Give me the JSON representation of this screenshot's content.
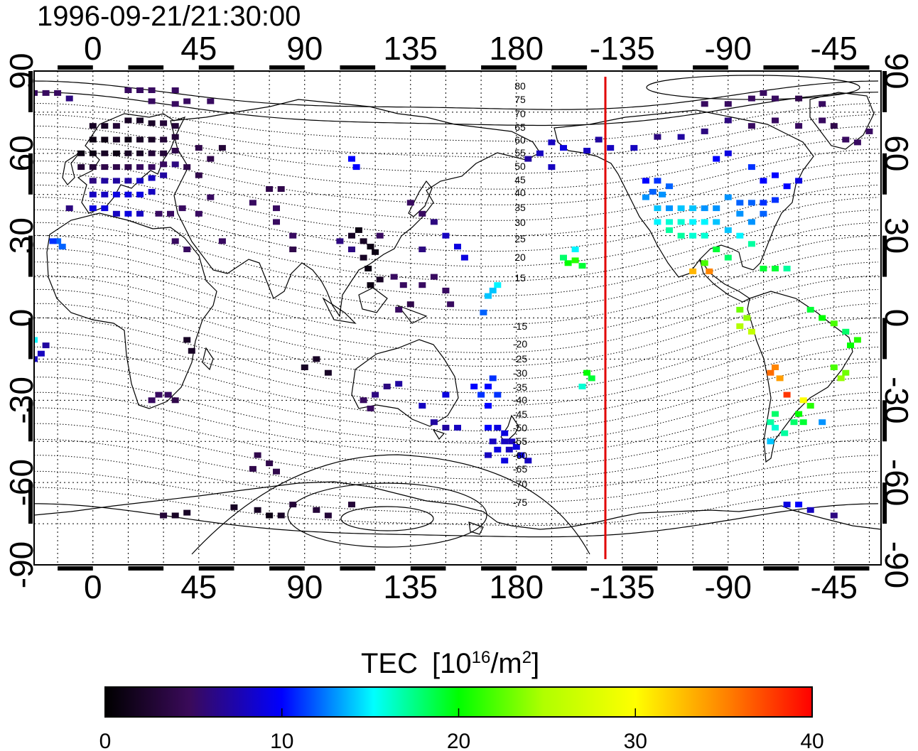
{
  "title": "1996-09-21/21:30:00",
  "lon_ticks": [
    "0",
    "45",
    "90",
    "135",
    "180",
    "-135",
    "-90",
    "-45"
  ],
  "lat_ticks": [
    "90",
    "60",
    "30",
    "0",
    "-30",
    "-60",
    "-90"
  ],
  "contour_labels": [
    "80",
    "75",
    "70",
    "65",
    "60",
    "55",
    "50",
    "45",
    "40",
    "35",
    "30",
    "25",
    "20",
    "15",
    "-15",
    "-20",
    "-25",
    "-30",
    "-35",
    "-40",
    "-45",
    "-50",
    "-55",
    "-60",
    "-65",
    "-70",
    "-75"
  ],
  "colorbar": {
    "title": "TEC",
    "unit_base": "[10",
    "unit_exp": "16",
    "unit_mid": "/m",
    "unit_exp2": "2",
    "unit_close": "]",
    "ticks": [
      "0",
      "10",
      "20",
      "30",
      "40"
    ],
    "range": [
      0,
      40
    ]
  },
  "terminator_color": "#e00000",
  "tec_cells": [
    {
      "lon": -25,
      "lat": 82,
      "v": 5
    },
    {
      "lon": -20,
      "lat": 82,
      "v": 5
    },
    {
      "lon": -15,
      "lat": 82,
      "v": 5
    },
    {
      "lon": -10,
      "lat": 80,
      "v": 6
    },
    {
      "lon": 15,
      "lat": 83,
      "v": 5
    },
    {
      "lon": 20,
      "lat": 83,
      "v": 5
    },
    {
      "lon": 25,
      "lat": 83,
      "v": 5
    },
    {
      "lon": 35,
      "lat": 83,
      "v": 5
    },
    {
      "lon": 25,
      "lat": 79,
      "v": 5
    },
    {
      "lon": 35,
      "lat": 78,
      "v": 5
    },
    {
      "lon": 40,
      "lat": 79,
      "v": 5
    },
    {
      "lon": 50,
      "lat": 79,
      "v": 5
    },
    {
      "lon": 0,
      "lat": 70,
      "v": 2
    },
    {
      "lon": 5,
      "lat": 70,
      "v": 2
    },
    {
      "lon": 10,
      "lat": 70,
      "v": 3
    },
    {
      "lon": 15,
      "lat": 72,
      "v": 2
    },
    {
      "lon": 20,
      "lat": 72,
      "v": 2
    },
    {
      "lon": 25,
      "lat": 71,
      "v": 2
    },
    {
      "lon": 30,
      "lat": 71,
      "v": 3
    },
    {
      "lon": 35,
      "lat": 70,
      "v": 3
    },
    {
      "lon": 0,
      "lat": 65,
      "v": 1
    },
    {
      "lon": 5,
      "lat": 65,
      "v": 1
    },
    {
      "lon": 10,
      "lat": 65,
      "v": 2
    },
    {
      "lon": 15,
      "lat": 65,
      "v": 1
    },
    {
      "lon": 20,
      "lat": 65,
      "v": 2
    },
    {
      "lon": 25,
      "lat": 65,
      "v": 2
    },
    {
      "lon": 30,
      "lat": 65,
      "v": 3
    },
    {
      "lon": 35,
      "lat": 66,
      "v": 3
    },
    {
      "lon": -5,
      "lat": 60,
      "v": 1
    },
    {
      "lon": 0,
      "lat": 60,
      "v": 1
    },
    {
      "lon": 5,
      "lat": 60,
      "v": 2
    },
    {
      "lon": 10,
      "lat": 60,
      "v": 1
    },
    {
      "lon": 15,
      "lat": 60,
      "v": 2
    },
    {
      "lon": 20,
      "lat": 60,
      "v": 2
    },
    {
      "lon": 25,
      "lat": 60,
      "v": 3
    },
    {
      "lon": 30,
      "lat": 60,
      "v": 3
    },
    {
      "lon": 35,
      "lat": 61,
      "v": 4
    },
    {
      "lon": -5,
      "lat": 55,
      "v": 3
    },
    {
      "lon": 0,
      "lat": 55,
      "v": 3
    },
    {
      "lon": 5,
      "lat": 55,
      "v": 4
    },
    {
      "lon": 10,
      "lat": 55,
      "v": 4
    },
    {
      "lon": 15,
      "lat": 55,
      "v": 4
    },
    {
      "lon": 20,
      "lat": 55,
      "v": 5
    },
    {
      "lon": 25,
      "lat": 55,
      "v": 5
    },
    {
      "lon": 30,
      "lat": 56,
      "v": 5
    },
    {
      "lon": 35,
      "lat": 56,
      "v": 6
    },
    {
      "lon": 0,
      "lat": 50,
      "v": 6
    },
    {
      "lon": 5,
      "lat": 50,
      "v": 7
    },
    {
      "lon": 10,
      "lat": 50,
      "v": 7
    },
    {
      "lon": 15,
      "lat": 50,
      "v": 7
    },
    {
      "lon": 20,
      "lat": 50,
      "v": 8
    },
    {
      "lon": 25,
      "lat": 51,
      "v": 8
    },
    {
      "lon": 30,
      "lat": 52,
      "v": 7
    },
    {
      "lon": 0,
      "lat": 45,
      "v": 8
    },
    {
      "lon": 5,
      "lat": 45,
      "v": 8
    },
    {
      "lon": 10,
      "lat": 45,
      "v": 9
    },
    {
      "lon": 15,
      "lat": 45,
      "v": 9
    },
    {
      "lon": 20,
      "lat": 45,
      "v": 9
    },
    {
      "lon": 25,
      "lat": 46,
      "v": 8
    },
    {
      "lon": -10,
      "lat": 40,
      "v": 6
    },
    {
      "lon": 0,
      "lat": 40,
      "v": 9
    },
    {
      "lon": 5,
      "lat": 40,
      "v": 9
    },
    {
      "lon": 10,
      "lat": 38,
      "v": 8
    },
    {
      "lon": 15,
      "lat": 38,
      "v": 9
    },
    {
      "lon": 20,
      "lat": 38,
      "v": 8
    },
    {
      "lon": -15,
      "lat": 28,
      "v": 12
    },
    {
      "lon": -17,
      "lat": 28,
      "v": 11
    },
    {
      "lon": -13,
      "lat": 26,
      "v": 12
    },
    {
      "lon": 28,
      "lat": 38,
      "v": 5
    },
    {
      "lon": 33,
      "lat": 38,
      "v": 5
    },
    {
      "lon": 38,
      "lat": 40,
      "v": 5
    },
    {
      "lon": 45,
      "lat": 38,
      "v": 5
    },
    {
      "lon": 50,
      "lat": 44,
      "v": 5
    },
    {
      "lon": 68,
      "lat": 42,
      "v": 5
    },
    {
      "lon": 75,
      "lat": 47,
      "v": 4
    },
    {
      "lon": 80,
      "lat": 47,
      "v": 4
    },
    {
      "lon": 45,
      "lat": 52,
      "v": 4
    },
    {
      "lon": 40,
      "lat": 55,
      "v": 4
    },
    {
      "lon": 50,
      "lat": 58,
      "v": 4
    },
    {
      "lon": 45,
      "lat": 62,
      "v": 4
    },
    {
      "lon": 55,
      "lat": 62,
      "v": 3
    },
    {
      "lon": 35,
      "lat": 28,
      "v": 5
    },
    {
      "lon": 40,
      "lat": 25,
      "v": 5
    },
    {
      "lon": 55,
      "lat": 28,
      "v": 5
    },
    {
      "lon": 78,
      "lat": 35,
      "v": 5
    },
    {
      "lon": 78,
      "lat": 40,
      "v": 5
    },
    {
      "lon": 85,
      "lat": 25,
      "v": 4
    },
    {
      "lon": 85,
      "lat": 30,
      "v": 5
    },
    {
      "lon": 110,
      "lat": 58,
      "v": 10
    },
    {
      "lon": 112,
      "lat": 55,
      "v": 10
    },
    {
      "lon": 110,
      "lat": 30,
      "v": 2
    },
    {
      "lon": 115,
      "lat": 28,
      "v": 2
    },
    {
      "lon": 118,
      "lat": 26,
      "v": 1
    },
    {
      "lon": 120,
      "lat": 24,
      "v": 1
    },
    {
      "lon": 115,
      "lat": 22,
      "v": 2
    },
    {
      "lon": 113,
      "lat": 32,
      "v": 1
    },
    {
      "lon": 117,
      "lat": 18,
      "v": 1
    },
    {
      "lon": 122,
      "lat": 14,
      "v": 2
    },
    {
      "lon": 118,
      "lat": 12,
      "v": 1
    },
    {
      "lon": 105,
      "lat": 28,
      "v": 6
    },
    {
      "lon": 110,
      "lat": 25,
      "v": 6
    },
    {
      "lon": 122,
      "lat": 30,
      "v": 5
    },
    {
      "lon": 135,
      "lat": 42,
      "v": 5
    },
    {
      "lon": 140,
      "lat": 38,
      "v": 5
    },
    {
      "lon": 145,
      "lat": 35,
      "v": 6
    },
    {
      "lon": 150,
      "lat": 30,
      "v": 8
    },
    {
      "lon": 155,
      "lat": 26,
      "v": 9
    },
    {
      "lon": 158,
      "lat": 22,
      "v": 9
    },
    {
      "lon": 140,
      "lat": 25,
      "v": 6
    },
    {
      "lon": 128,
      "lat": 15,
      "v": 5
    },
    {
      "lon": 132,
      "lat": 12,
      "v": 5
    },
    {
      "lon": 140,
      "lat": 12,
      "v": 5
    },
    {
      "lon": 145,
      "lat": 15,
      "v": 5
    },
    {
      "lon": 150,
      "lat": 10,
      "v": 5
    },
    {
      "lon": 152,
      "lat": 5,
      "v": 5
    },
    {
      "lon": 135,
      "lat": 5,
      "v": 4
    },
    {
      "lon": 130,
      "lat": 3,
      "v": 5
    },
    {
      "lon": 170,
      "lat": 10,
      "v": 14
    },
    {
      "lon": 172,
      "lat": 12,
      "v": 15
    },
    {
      "lon": 168,
      "lat": 8,
      "v": 14
    },
    {
      "lon": 166,
      "lat": 2,
      "v": 12
    },
    {
      "lon": 95,
      "lat": -15,
      "v": 2
    },
    {
      "lon": 100,
      "lat": -20,
      "v": 2
    },
    {
      "lon": 90,
      "lat": -18,
      "v": 2
    },
    {
      "lon": 115,
      "lat": -30,
      "v": 5
    },
    {
      "lon": 118,
      "lat": -33,
      "v": 5
    },
    {
      "lon": 120,
      "lat": -28,
      "v": 6
    },
    {
      "lon": 125,
      "lat": -25,
      "v": 6
    },
    {
      "lon": 130,
      "lat": -24,
      "v": 7
    },
    {
      "lon": 140,
      "lat": -32,
      "v": 8
    },
    {
      "lon": 150,
      "lat": -28,
      "v": 9
    },
    {
      "lon": 145,
      "lat": -38,
      "v": 7
    },
    {
      "lon": 150,
      "lat": -40,
      "v": 7
    },
    {
      "lon": 155,
      "lat": -40,
      "v": 8
    },
    {
      "lon": 162,
      "lat": -25,
      "v": 10
    },
    {
      "lon": 165,
      "lat": -28,
      "v": 11
    },
    {
      "lon": 168,
      "lat": -25,
      "v": 10
    },
    {
      "lon": 170,
      "lat": -22,
      "v": 11
    },
    {
      "lon": 172,
      "lat": -28,
      "v": 11
    },
    {
      "lon": 168,
      "lat": -32,
      "v": 10
    },
    {
      "lon": 168,
      "lat": -40,
      "v": 10
    },
    {
      "lon": 172,
      "lat": -40,
      "v": 9
    },
    {
      "lon": 175,
      "lat": -42,
      "v": 9
    },
    {
      "lon": 170,
      "lat": -45,
      "v": 8
    },
    {
      "lon": 175,
      "lat": -45,
      "v": 8
    },
    {
      "lon": 178,
      "lat": -45,
      "v": 8
    },
    {
      "lon": 172,
      "lat": -48,
      "v": 9
    },
    {
      "lon": 177,
      "lat": -48,
      "v": 8
    },
    {
      "lon": 180,
      "lat": -47,
      "v": 9
    },
    {
      "lon": 175,
      "lat": -52,
      "v": 9
    },
    {
      "lon": 168,
      "lat": -50,
      "v": 8
    },
    {
      "lon": 182,
      "lat": -50,
      "v": 9
    },
    {
      "lon": 185,
      "lat": -52,
      "v": 8
    },
    {
      "lon": -25,
      "lat": -8,
      "v": 15
    },
    {
      "lon": -22,
      "lat": -13,
      "v": 8
    },
    {
      "lon": -20,
      "lat": -10,
      "v": 7
    },
    {
      "lon": -25,
      "lat": -15,
      "v": 8
    },
    {
      "lon": 40,
      "lat": -8,
      "v": 2
    },
    {
      "lon": 42,
      "lat": -12,
      "v": 2
    },
    {
      "lon": 25,
      "lat": -30,
      "v": 5
    },
    {
      "lon": 28,
      "lat": -28,
      "v": 5
    },
    {
      "lon": 32,
      "lat": -28,
      "v": 5
    },
    {
      "lon": 35,
      "lat": -30,
      "v": 4
    },
    {
      "lon": 70,
      "lat": -50,
      "v": 4
    },
    {
      "lon": 75,
      "lat": -53,
      "v": 4
    },
    {
      "lon": 68,
      "lat": -55,
      "v": 4
    },
    {
      "lon": 78,
      "lat": -56,
      "v": 4
    },
    {
      "lon": 30,
      "lat": -72,
      "v": 3
    },
    {
      "lon": 35,
      "lat": -72,
      "v": 2
    },
    {
      "lon": 40,
      "lat": -71,
      "v": 2
    },
    {
      "lon": 60,
      "lat": -69,
      "v": 2
    },
    {
      "lon": 70,
      "lat": -70,
      "v": 2
    },
    {
      "lon": 75,
      "lat": -72,
      "v": 1
    },
    {
      "lon": 80,
      "lat": -72,
      "v": 2
    },
    {
      "lon": 85,
      "lat": -68,
      "v": 3
    },
    {
      "lon": 95,
      "lat": -70,
      "v": 3
    },
    {
      "lon": 110,
      "lat": -68,
      "v": 3
    },
    {
      "lon": 100,
      "lat": -72,
      "v": 3
    },
    {
      "lon": -155,
      "lat": 21,
      "v": 21
    },
    {
      "lon": -158,
      "lat": 20,
      "v": 20
    },
    {
      "lon": -152,
      "lat": 19,
      "v": 19
    },
    {
      "lon": -155,
      "lat": 25,
      "v": 15
    },
    {
      "lon": -160,
      "lat": 22,
      "v": 18
    },
    {
      "lon": -150,
      "lat": -20,
      "v": 20
    },
    {
      "lon": -148,
      "lat": -22,
      "v": 19
    },
    {
      "lon": -152,
      "lat": -25,
      "v": 16
    },
    {
      "lon": -125,
      "lat": 50,
      "v": 10
    },
    {
      "lon": -120,
      "lat": 50,
      "v": 11
    },
    {
      "lon": -115,
      "lat": 48,
      "v": 12
    },
    {
      "lon": -122,
      "lat": 46,
      "v": 12
    },
    {
      "lon": -118,
      "lat": 45,
      "v": 13
    },
    {
      "lon": -125,
      "lat": 44,
      "v": 13
    },
    {
      "lon": -120,
      "lat": 40,
      "v": 14
    },
    {
      "lon": -115,
      "lat": 40,
      "v": 13
    },
    {
      "lon": -110,
      "lat": 40,
      "v": 14
    },
    {
      "lon": -105,
      "lat": 40,
      "v": 14
    },
    {
      "lon": -100,
      "lat": 40,
      "v": 13
    },
    {
      "lon": -95,
      "lat": 40,
      "v": 13
    },
    {
      "lon": -120,
      "lat": 35,
      "v": 15
    },
    {
      "lon": -115,
      "lat": 35,
      "v": 16
    },
    {
      "lon": -110,
      "lat": 35,
      "v": 16
    },
    {
      "lon": -105,
      "lat": 35,
      "v": 15
    },
    {
      "lon": -100,
      "lat": 35,
      "v": 15
    },
    {
      "lon": -95,
      "lat": 35,
      "v": 14
    },
    {
      "lon": -115,
      "lat": 32,
      "v": 17
    },
    {
      "lon": -110,
      "lat": 30,
      "v": 17
    },
    {
      "lon": -105,
      "lat": 30,
      "v": 16
    },
    {
      "lon": -100,
      "lat": 30,
      "v": 16
    },
    {
      "lon": -90,
      "lat": 44,
      "v": 13
    },
    {
      "lon": -85,
      "lat": 42,
      "v": 12
    },
    {
      "lon": -80,
      "lat": 42,
      "v": 12
    },
    {
      "lon": -75,
      "lat": 42,
      "v": 11
    },
    {
      "lon": -70,
      "lat": 43,
      "v": 11
    },
    {
      "lon": -85,
      "lat": 38,
      "v": 13
    },
    {
      "lon": -80,
      "lat": 35,
      "v": 13
    },
    {
      "lon": -75,
      "lat": 38,
      "v": 12
    },
    {
      "lon": -90,
      "lat": 32,
      "v": 14
    },
    {
      "lon": -85,
      "lat": 30,
      "v": 15
    },
    {
      "lon": -80,
      "lat": 27,
      "v": 17
    },
    {
      "lon": -95,
      "lat": 25,
      "v": 19
    },
    {
      "lon": -90,
      "lat": 22,
      "v": 18
    },
    {
      "lon": -100,
      "lat": 20,
      "v": 22
    },
    {
      "lon": -105,
      "lat": 17,
      "v": 33
    },
    {
      "lon": -98,
      "lat": 17,
      "v": 35
    },
    {
      "lon": -75,
      "lat": 18,
      "v": 19
    },
    {
      "lon": -70,
      "lat": 18,
      "v": 19
    },
    {
      "lon": -65,
      "lat": 18,
      "v": 17
    },
    {
      "lon": -90,
      "lat": 60,
      "v": 9
    },
    {
      "lon": -95,
      "lat": 58,
      "v": 10
    },
    {
      "lon": -80,
      "lat": 55,
      "v": 11
    },
    {
      "lon": -75,
      "lat": 50,
      "v": 10
    },
    {
      "lon": -65,
      "lat": 48,
      "v": 10
    },
    {
      "lon": -70,
      "lat": 52,
      "v": 10
    },
    {
      "lon": -60,
      "lat": 50,
      "v": 9
    },
    {
      "lon": -140,
      "lat": 62,
      "v": 8
    },
    {
      "lon": -150,
      "lat": 61,
      "v": 8
    },
    {
      "lon": -145,
      "lat": 65,
      "v": 7
    },
    {
      "lon": -130,
      "lat": 62,
      "v": 8
    },
    {
      "lon": -160,
      "lat": 62,
      "v": 9
    },
    {
      "lon": -165,
      "lat": 64,
      "v": 8
    },
    {
      "lon": -170,
      "lat": 60,
      "v": 8
    },
    {
      "lon": -175,
      "lat": 58,
      "v": 7
    },
    {
      "lon": -165,
      "lat": 55,
      "v": 8
    },
    {
      "lon": -120,
      "lat": 66,
      "v": 6
    },
    {
      "lon": -110,
      "lat": 66,
      "v": 7
    },
    {
      "lon": -100,
      "lat": 68,
      "v": 6
    },
    {
      "lon": -90,
      "lat": 72,
      "v": 6
    },
    {
      "lon": -80,
      "lat": 70,
      "v": 5
    },
    {
      "lon": -70,
      "lat": 72,
      "v": 5
    },
    {
      "lon": -60,
      "lat": 70,
      "v": 5
    },
    {
      "lon": -100,
      "lat": 78,
      "v": 5
    },
    {
      "lon": -90,
      "lat": 78,
      "v": 5
    },
    {
      "lon": -80,
      "lat": 80,
      "v": 5
    },
    {
      "lon": -75,
      "lat": 82,
      "v": 5
    },
    {
      "lon": -70,
      "lat": 80,
      "v": 5
    },
    {
      "lon": -60,
      "lat": 80,
      "v": 4
    },
    {
      "lon": -50,
      "lat": 78,
      "v": 5
    },
    {
      "lon": -50,
      "lat": 72,
      "v": 5
    },
    {
      "lon": -45,
      "lat": 70,
      "v": 4
    },
    {
      "lon": -40,
      "lat": 65,
      "v": 5
    },
    {
      "lon": -35,
      "lat": 64,
      "v": 5
    },
    {
      "lon": -30,
      "lat": 68,
      "v": 5
    },
    {
      "lon": -85,
      "lat": 3,
      "v": 23
    },
    {
      "lon": -82,
      "lat": 0,
      "v": 24
    },
    {
      "lon": -85,
      "lat": -3,
      "v": 25
    },
    {
      "lon": -80,
      "lat": -5,
      "v": 26
    },
    {
      "lon": -55,
      "lat": 3,
      "v": 19
    },
    {
      "lon": -50,
      "lat": 0,
      "v": 20
    },
    {
      "lon": -45,
      "lat": -2,
      "v": 22
    },
    {
      "lon": -40,
      "lat": -5,
      "v": 18
    },
    {
      "lon": -38,
      "lat": -10,
      "v": 20
    },
    {
      "lon": -35,
      "lat": -8,
      "v": 21
    },
    {
      "lon": -45,
      "lat": -18,
      "v": 22
    },
    {
      "lon": -42,
      "lat": -22,
      "v": 24
    },
    {
      "lon": -40,
      "lat": -20,
      "v": 23
    },
    {
      "lon": -70,
      "lat": -18,
      "v": 35
    },
    {
      "lon": -72,
      "lat": -20,
      "v": 36
    },
    {
      "lon": -68,
      "lat": -22,
      "v": 34
    },
    {
      "lon": -65,
      "lat": -28,
      "v": 38
    },
    {
      "lon": -58,
      "lat": -30,
      "v": 30
    },
    {
      "lon": -55,
      "lat": -32,
      "v": 21
    },
    {
      "lon": -60,
      "lat": -35,
      "v": 20
    },
    {
      "lon": -58,
      "lat": -38,
      "v": 19
    },
    {
      "lon": -62,
      "lat": -38,
      "v": 18
    },
    {
      "lon": -70,
      "lat": -35,
      "v": 18
    },
    {
      "lon": -72,
      "lat": -38,
      "v": 17
    },
    {
      "lon": -70,
      "lat": -40,
      "v": 16
    },
    {
      "lon": -66,
      "lat": -42,
      "v": 17
    },
    {
      "lon": -72,
      "lat": -45,
      "v": 14
    },
    {
      "lon": -50,
      "lat": -38,
      "v": 13
    },
    {
      "lon": -65,
      "lat": -68,
      "v": 9
    },
    {
      "lon": -60,
      "lat": -68,
      "v": 10
    },
    {
      "lon": -55,
      "lat": -70,
      "v": 8
    },
    {
      "lon": -45,
      "lat": -72,
      "v": 6
    }
  ]
}
